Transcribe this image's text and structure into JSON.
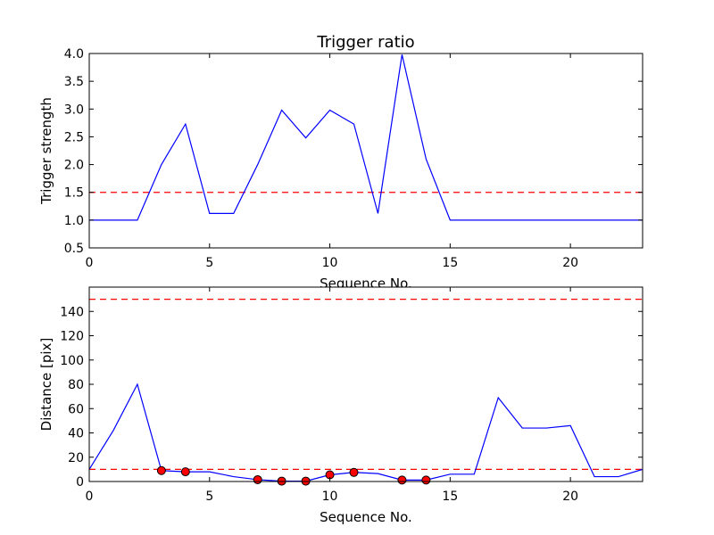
{
  "chart_data": [
    {
      "type": "line",
      "title": "Trigger ratio",
      "xlabel": "Sequence No.",
      "ylabel": "Trigger strength",
      "xlim": [
        0,
        23
      ],
      "ylim": [
        0.5,
        4.0
      ],
      "xticks": [
        0,
        5,
        10,
        15,
        20
      ],
      "yticks": [
        0.5,
        1.0,
        1.5,
        2.0,
        2.5,
        3.0,
        3.5,
        4.0
      ],
      "ytick_labels": [
        "0.5",
        "1.0",
        "1.5",
        "2.0",
        "2.5",
        "3.0",
        "3.5",
        "4.0"
      ],
      "grid": false,
      "x": [
        0,
        1,
        2,
        3,
        4,
        5,
        6,
        7,
        8,
        9,
        10,
        11,
        12,
        13,
        14,
        15,
        16,
        17,
        18,
        19,
        20,
        21,
        22,
        23
      ],
      "series": [
        {
          "color": "#0000ff",
          "values": [
            1.0,
            1.0,
            1.0,
            2.0,
            2.73,
            1.12,
            1.12,
            2.0,
            2.98,
            2.48,
            2.98,
            2.73,
            1.12,
            3.98,
            2.1,
            1.0,
            1.0,
            1.0,
            1.0,
            1.0,
            1.0,
            1.0,
            1.0,
            1.0
          ]
        }
      ],
      "hlines": [
        {
          "y": 1.5,
          "color": "#ff0000",
          "style": "dashed"
        }
      ]
    },
    {
      "type": "line",
      "title": "",
      "xlabel": "Sequence No.",
      "ylabel": "Distance [pix]",
      "xlim": [
        0,
        23
      ],
      "ylim": [
        0,
        160
      ],
      "xticks": [
        0,
        5,
        10,
        15,
        20
      ],
      "yticks": [
        0,
        20,
        40,
        60,
        80,
        100,
        120,
        140
      ],
      "ytick_labels": [
        "0",
        "20",
        "40",
        "60",
        "80",
        "100",
        "120",
        "140"
      ],
      "grid": false,
      "x": [
        0,
        1,
        2,
        3,
        4,
        5,
        6,
        7,
        8,
        9,
        10,
        11,
        12,
        13,
        14,
        15,
        16,
        17,
        18,
        19,
        20,
        21,
        22,
        23
      ],
      "series": [
        {
          "color": "#0000ff",
          "values": [
            10,
            42,
            80,
            9,
            8,
            8,
            4,
            1.5,
            0.3,
            0.3,
            5.5,
            7.5,
            6.5,
            1.2,
            1.2,
            6,
            6,
            69,
            44,
            44,
            46,
            4,
            4,
            10
          ]
        }
      ],
      "markers": {
        "color": "#ff0000",
        "x": [
          3,
          4,
          7,
          8,
          9,
          10,
          11,
          13,
          14
        ],
        "y": [
          9,
          8,
          1.5,
          0.3,
          0.3,
          5.5,
          7.5,
          1.2,
          1.2
        ]
      },
      "hlines": [
        {
          "y": 10,
          "color": "#ff0000",
          "style": "dashed"
        },
        {
          "y": 150,
          "color": "#ff0000",
          "style": "dashed"
        }
      ]
    }
  ]
}
